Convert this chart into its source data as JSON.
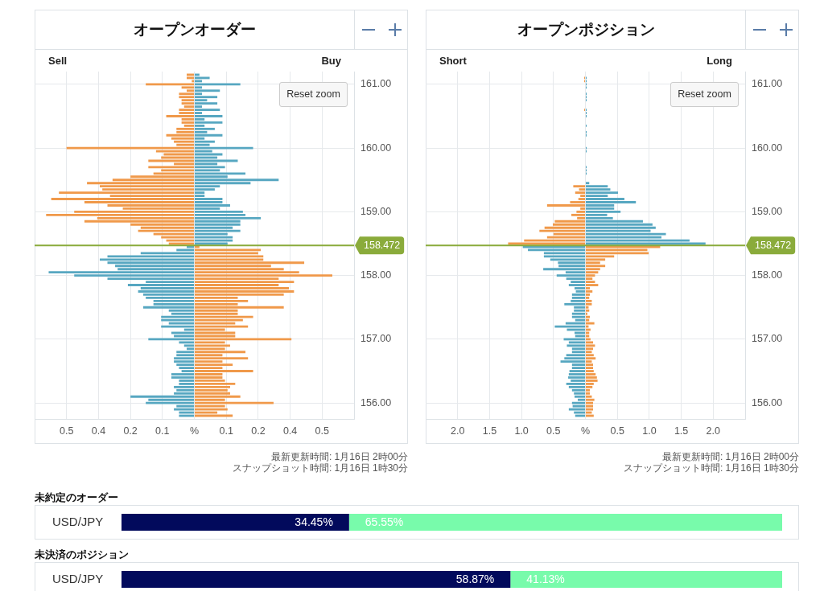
{
  "chart_data": [
    {
      "type": "bar",
      "orientation": "horizontal",
      "stacked": true,
      "title": "オープンオーダー",
      "x": [
        161.15,
        161.1,
        161.05,
        161,
        160.95,
        160.9,
        160.85,
        160.8,
        160.75,
        160.7,
        160.65,
        160.6,
        160.55,
        160.5,
        160.45,
        160.4,
        160.35,
        160.3,
        160.25,
        160.2,
        160.15,
        160.1,
        160.05,
        160,
        159.95,
        159.9,
        159.85,
        159.8,
        159.75,
        159.7,
        159.65,
        159.6,
        159.55,
        159.5,
        159.45,
        159.4,
        159.35,
        159.3,
        159.25,
        159.2,
        159.15,
        159.1,
        159.05,
        159,
        158.95,
        158.9,
        158.85,
        158.8,
        158.75,
        158.7,
        158.65,
        158.6,
        158.55,
        158.5,
        158.45,
        158.4,
        158.35,
        158.3,
        158.25,
        158.2,
        158.15,
        158.1,
        158.05,
        158,
        157.95,
        157.9,
        157.85,
        157.8,
        157.75,
        157.7,
        157.65,
        157.6,
        157.55,
        157.5,
        157.45,
        157.4,
        157.35,
        157.3,
        157.25,
        157.2,
        157.15,
        157.1,
        157.05,
        157,
        156.95,
        156.9,
        156.85,
        156.8,
        156.75,
        156.7,
        156.65,
        156.6,
        156.55,
        156.5,
        156.45,
        156.4,
        156.35,
        156.3,
        156.25,
        156.2,
        156.15,
        156.1,
        156.05,
        156,
        155.95,
        155.9,
        155.85,
        155.8
      ],
      "series": [
        {
          "values": [
            -0.03,
            -0.03,
            -0.01,
            -0.19,
            -0.05,
            -0.03,
            -0.06,
            -0.06,
            -0.05,
            -0.05,
            -0.04,
            -0.06,
            -0.06,
            -0.11,
            -0.05,
            -0.05,
            -0.04,
            -0.07,
            -0.07,
            -0.11,
            -0.09,
            -0.08,
            -0.07,
            -0.5,
            -0.15,
            -0.12,
            -0.13,
            -0.18,
            -0.08,
            -0.18,
            -0.13,
            -0.16,
            -0.25,
            -0.32,
            -0.42,
            -0.37,
            -0.36,
            -0.53,
            -0.33,
            -0.56,
            -0.43,
            -0.34,
            -0.28,
            -0.47,
            -0.58,
            -0.38,
            -0.43,
            -0.25,
            -0.21,
            -0.22,
            -0.16,
            -0.13,
            -0.11,
            -0.1,
            -0.03,
            -0.07,
            -0.21,
            -0.34,
            -0.37,
            -0.34,
            -0.31,
            -0.3,
            -0.57,
            -0.47,
            -0.34,
            -0.19,
            -0.26,
            -0.21,
            -0.22,
            -0.2,
            -0.19,
            -0.16,
            -0.16,
            -0.2,
            -0.1,
            -0.09,
            -0.13,
            -0.13,
            -0.1,
            -0.13,
            -0.04,
            -0.09,
            -0.08,
            -0.18,
            -0.06,
            -0.04,
            -0.03,
            -0.07,
            -0.07,
            -0.08,
            -0.08,
            -0.07,
            -0.06,
            -0.05,
            -0.09,
            -0.09,
            -0.06,
            -0.06,
            -0.08,
            -0.07,
            -0.08,
            -0.25,
            -0.18,
            -0.19,
            -0.07,
            -0.08,
            -0.06,
            -0.06
          ],
          "colors": [
            "#f0994a",
            "#f0994a",
            "#f0994a",
            "#f0994a",
            "#f0994a",
            "#f0994a",
            "#f0994a",
            "#f0994a",
            "#f0994a",
            "#f0994a",
            "#f0994a",
            "#f0994a",
            "#f0994a",
            "#f0994a",
            "#f0994a",
            "#f0994a",
            "#f0994a",
            "#f0994a",
            "#f0994a",
            "#f0994a",
            "#f0994a",
            "#f0994a",
            "#f0994a",
            "#f0994a",
            "#f0994a",
            "#f0994a",
            "#f0994a",
            "#f0994a",
            "#f0994a",
            "#f0994a",
            "#f0994a",
            "#f0994a",
            "#f0994a",
            "#f0994a",
            "#f0994a",
            "#f0994a",
            "#f0994a",
            "#f0994a",
            "#f0994a",
            "#f0994a",
            "#f0994a",
            "#f0994a",
            "#f0994a",
            "#f0994a",
            "#f0994a",
            "#f0994a",
            "#f0994a",
            "#f0994a",
            "#f0994a",
            "#f0994a",
            "#f0994a",
            "#f0994a",
            "#f0994a",
            "#f0994a",
            "#57a7c1",
            "#57a7c1",
            "#57a7c1",
            "#57a7c1",
            "#57a7c1",
            "#57a7c1",
            "#57a7c1",
            "#57a7c1",
            "#57a7c1",
            "#57a7c1",
            "#57a7c1",
            "#57a7c1",
            "#57a7c1",
            "#57a7c1",
            "#57a7c1",
            "#57a7c1",
            "#57a7c1",
            "#57a7c1",
            "#57a7c1",
            "#57a7c1",
            "#57a7c1",
            "#57a7c1",
            "#57a7c1",
            "#57a7c1",
            "#57a7c1",
            "#57a7c1",
            "#57a7c1",
            "#57a7c1",
            "#57a7c1",
            "#57a7c1",
            "#57a7c1",
            "#57a7c1",
            "#57a7c1",
            "#57a7c1",
            "#57a7c1",
            "#57a7c1",
            "#57a7c1",
            "#57a7c1",
            "#57a7c1",
            "#57a7c1",
            "#57a7c1",
            "#57a7c1",
            "#57a7c1",
            "#57a7c1",
            "#57a7c1",
            "#57a7c1",
            "#57a7c1",
            "#57a7c1",
            "#57a7c1",
            "#57a7c1",
            "#57a7c1",
            "#57a7c1",
            "#57a7c1",
            "#57a7c1"
          ]
        },
        {
          "values": [
            0.02,
            0.06,
            0.03,
            0.18,
            0.03,
            0.1,
            0.03,
            0.09,
            0.05,
            0.09,
            0.03,
            0.1,
            0.03,
            0.11,
            0.04,
            0.11,
            0.04,
            0.08,
            0.05,
            0.11,
            0.04,
            0.08,
            0.06,
            0.23,
            0.07,
            0.11,
            0.09,
            0.17,
            0.09,
            0.12,
            0.1,
            0.2,
            0.13,
            0.33,
            0.22,
            0.1,
            0.08,
            0.04,
            0.04,
            0.11,
            0.11,
            0.14,
            0.1,
            0.19,
            0.2,
            0.26,
            0.18,
            0.18,
            0.15,
            0.18,
            0.13,
            0.15,
            0.15,
            0.13,
            0.02,
            0.26,
            0.25,
            0.27,
            0.27,
            0.43,
            0.3,
            0.35,
            0.41,
            0.54,
            0.33,
            0.39,
            0.33,
            0.37,
            0.39,
            0.35,
            0.17,
            0.21,
            0.17,
            0.35,
            0.17,
            0.17,
            0.23,
            0.19,
            0.16,
            0.21,
            0.12,
            0.16,
            0.16,
            0.38,
            0.12,
            0.14,
            0.12,
            0.2,
            0.11,
            0.21,
            0.11,
            0.15,
            0.11,
            0.23,
            0.11,
            0.11,
            0.12,
            0.16,
            0.14,
            0.13,
            0.14,
            0.18,
            0.12,
            0.31,
            0.12,
            0.13,
            0.09,
            0.15
          ],
          "colors": [
            "#57a7c1",
            "#57a7c1",
            "#57a7c1",
            "#57a7c1",
            "#57a7c1",
            "#57a7c1",
            "#57a7c1",
            "#57a7c1",
            "#57a7c1",
            "#57a7c1",
            "#57a7c1",
            "#57a7c1",
            "#57a7c1",
            "#57a7c1",
            "#57a7c1",
            "#57a7c1",
            "#57a7c1",
            "#57a7c1",
            "#57a7c1",
            "#57a7c1",
            "#57a7c1",
            "#57a7c1",
            "#57a7c1",
            "#57a7c1",
            "#57a7c1",
            "#57a7c1",
            "#57a7c1",
            "#57a7c1",
            "#57a7c1",
            "#57a7c1",
            "#57a7c1",
            "#57a7c1",
            "#57a7c1",
            "#57a7c1",
            "#57a7c1",
            "#57a7c1",
            "#57a7c1",
            "#57a7c1",
            "#57a7c1",
            "#57a7c1",
            "#57a7c1",
            "#57a7c1",
            "#57a7c1",
            "#57a7c1",
            "#57a7c1",
            "#57a7c1",
            "#57a7c1",
            "#57a7c1",
            "#57a7c1",
            "#57a7c1",
            "#57a7c1",
            "#57a7c1",
            "#57a7c1",
            "#57a7c1",
            "#f0994a",
            "#f0994a",
            "#f0994a",
            "#f0994a",
            "#f0994a",
            "#f0994a",
            "#f0994a",
            "#f0994a",
            "#f0994a",
            "#f0994a",
            "#f0994a",
            "#f0994a",
            "#f0994a",
            "#f0994a",
            "#f0994a",
            "#f0994a",
            "#f0994a",
            "#f0994a",
            "#f0994a",
            "#f0994a",
            "#f0994a",
            "#f0994a",
            "#f0994a",
            "#f0994a",
            "#f0994a",
            "#f0994a",
            "#f0994a",
            "#f0994a",
            "#f0994a",
            "#f0994a",
            "#f0994a",
            "#f0994a",
            "#f0994a",
            "#f0994a",
            "#f0994a",
            "#f0994a",
            "#f0994a",
            "#f0994a",
            "#f0994a",
            "#f0994a",
            "#f0994a",
            "#f0994a",
            "#f0994a",
            "#f0994a",
            "#f0994a",
            "#f0994a",
            "#f0994a",
            "#f0994a",
            "#f0994a",
            "#f0994a",
            "#f0994a",
            "#f0994a",
            "#f0994a",
            "#f0994a"
          ]
        }
      ],
      "xlim": [
        -0.625,
        0.625
      ],
      "xticks": [
        {
          "value": -0.5,
          "label": "0.5"
        },
        {
          "value": -0.375,
          "label": "0.4"
        },
        {
          "value": -0.25,
          "label": "0.2"
        },
        {
          "value": -0.125,
          "label": "0.1"
        },
        {
          "value": 0,
          "label": "%"
        },
        {
          "value": 0.125,
          "label": "0.1"
        },
        {
          "value": 0.25,
          "label": "0.2"
        },
        {
          "value": 0.375,
          "label": "0.4"
        },
        {
          "value": 0.5,
          "label": "0.5"
        }
      ],
      "ylim": [
        155.75,
        161.2
      ],
      "yticks": [
        {
          "value": 156,
          "label": "156.00"
        },
        {
          "value": 157,
          "label": "157.00"
        },
        {
          "value": 158,
          "label": "158.00"
        },
        {
          "value": 159,
          "label": "159.00"
        },
        {
          "value": 160,
          "label": "160.00"
        },
        {
          "value": 161,
          "label": "161.00"
        }
      ],
      "grid": true,
      "ref_lines": [
        {
          "axis": "y",
          "value": 158.472,
          "label": "158.472",
          "color": "#8aab3b"
        }
      ],
      "annotations": [
        "Sell",
        "Buy",
        "Reset zoom",
        "最新更新時間: 1月16日 2時00分",
        "スナップショット時間: 1月16日 1時30分"
      ]
    },
    {
      "type": "bar",
      "orientation": "horizontal",
      "stacked": true,
      "title": "オープンポジション",
      "x": [
        161.1,
        161.05,
        161,
        160.95,
        160.9,
        160.85,
        160.8,
        160.75,
        160.7,
        160.65,
        160.6,
        160.55,
        160.5,
        160.45,
        160.4,
        160.35,
        160.3,
        160.25,
        160.2,
        160.15,
        160.1,
        160.05,
        160,
        159.95,
        159.9,
        159.85,
        159.8,
        159.75,
        159.7,
        159.65,
        159.6,
        159.55,
        159.5,
        159.45,
        159.4,
        159.35,
        159.3,
        159.25,
        159.2,
        159.15,
        159.1,
        159.05,
        159,
        158.95,
        158.9,
        158.85,
        158.8,
        158.75,
        158.7,
        158.65,
        158.6,
        158.55,
        158.5,
        158.45,
        158.4,
        158.35,
        158.3,
        158.25,
        158.2,
        158.15,
        158.1,
        158.05,
        158,
        157.95,
        157.9,
        157.85,
        157.8,
        157.75,
        157.7,
        157.65,
        157.6,
        157.55,
        157.5,
        157.45,
        157.4,
        157.35,
        157.3,
        157.25,
        157.2,
        157.15,
        157.1,
        157.05,
        157,
        156.95,
        156.9,
        156.85,
        156.8,
        156.75,
        156.7,
        156.65,
        156.6,
        156.55,
        156.5,
        156.45,
        156.4,
        156.35,
        156.3,
        156.25,
        156.2,
        156.15,
        156.1,
        156.05,
        156,
        155.95,
        155.9,
        155.85,
        155.8
      ],
      "series": [
        {
          "values": [
            -0.02,
            -0.02,
            null,
            null,
            null,
            null,
            null,
            null,
            null,
            null,
            -0.02,
            null,
            null,
            null,
            null,
            null,
            null,
            null,
            null,
            null,
            null,
            null,
            null,
            null,
            null,
            null,
            null,
            null,
            null,
            null,
            null,
            null,
            null,
            null,
            -0.19,
            -0.1,
            -0.16,
            -0.08,
            -0.11,
            -0.24,
            -0.6,
            -0.08,
            -0.14,
            -0.22,
            -0.13,
            -0.48,
            -0.51,
            -0.64,
            -0.72,
            -0.5,
            -0.6,
            -0.96,
            -1.21,
            -0.98,
            -0.9,
            -0.65,
            -0.65,
            -0.55,
            -0.43,
            -0.42,
            -0.66,
            -0.31,
            -0.45,
            -0.3,
            -0.23,
            -0.26,
            -0.17,
            -0.15,
            -0.21,
            -0.21,
            -0.23,
            -0.33,
            -0.18,
            -0.18,
            -0.21,
            -0.21,
            -0.16,
            -0.31,
            -0.48,
            -0.29,
            -0.17,
            -0.16,
            -0.34,
            -0.26,
            -0.29,
            -0.21,
            -0.21,
            -0.3,
            -0.33,
            -0.39,
            -0.21,
            -0.21,
            -0.25,
            -0.26,
            -0.27,
            -0.23,
            -0.3,
            -0.26,
            -0.21,
            -0.18,
            -0.17,
            -0.12,
            -0.21,
            -0.2,
            -0.26,
            -0.18,
            -0.16
          ],
          "colors": [
            "#f0994a",
            "#f0994a",
            "#f0994a",
            "#f0994a",
            "#f0994a",
            "#f0994a",
            "#f0994a",
            "#f0994a",
            "#f0994a",
            "#f0994a",
            "#f0994a",
            "#f0994a",
            "#f0994a",
            "#f0994a",
            "#f0994a",
            "#f0994a",
            "#f0994a",
            "#f0994a",
            "#f0994a",
            "#f0994a",
            "#f0994a",
            "#f0994a",
            "#f0994a",
            "#f0994a",
            "#f0994a",
            "#f0994a",
            "#f0994a",
            "#f0994a",
            "#f0994a",
            "#f0994a",
            "#f0994a",
            "#f0994a",
            "#f0994a",
            "#f0994a",
            "#f0994a",
            "#f0994a",
            "#f0994a",
            "#f0994a",
            "#f0994a",
            "#f0994a",
            "#f0994a",
            "#f0994a",
            "#f0994a",
            "#f0994a",
            "#f0994a",
            "#f0994a",
            "#f0994a",
            "#f0994a",
            "#f0994a",
            "#f0994a",
            "#f0994a",
            "#f0994a",
            "#f0994a",
            "#57a7c1",
            "#57a7c1",
            "#57a7c1",
            "#57a7c1",
            "#57a7c1",
            "#57a7c1",
            "#57a7c1",
            "#57a7c1",
            "#57a7c1",
            "#57a7c1",
            "#57a7c1",
            "#57a7c1",
            "#57a7c1",
            "#57a7c1",
            "#57a7c1",
            "#57a7c1",
            "#57a7c1",
            "#57a7c1",
            "#57a7c1",
            "#57a7c1",
            "#57a7c1",
            "#57a7c1",
            "#57a7c1",
            "#57a7c1",
            "#57a7c1",
            "#57a7c1",
            "#57a7c1",
            "#57a7c1",
            "#57a7c1",
            "#57a7c1",
            "#57a7c1",
            "#57a7c1",
            "#57a7c1",
            "#57a7c1",
            "#57a7c1",
            "#57a7c1",
            "#57a7c1",
            "#57a7c1",
            "#57a7c1",
            "#57a7c1",
            "#57a7c1",
            "#57a7c1",
            "#57a7c1",
            "#57a7c1",
            "#57a7c1",
            "#57a7c1",
            "#57a7c1",
            "#57a7c1",
            "#57a7c1",
            "#57a7c1",
            "#57a7c1",
            "#57a7c1",
            "#57a7c1",
            "#57a7c1"
          ]
        },
        {
          "values": [
            0.02,
            0.02,
            0.02,
            0.02,
            null,
            0.02,
            0.02,
            0.02,
            null,
            null,
            0.02,
            0.02,
            0.02,
            null,
            null,
            0.02,
            null,
            0.02,
            0.02,
            null,
            null,
            null,
            0.02,
            0.02,
            null,
            null,
            null,
            null,
            0.02,
            0.02,
            0.02,
            null,
            null,
            0.06,
            0.35,
            0.39,
            0.51,
            0.35,
            0.61,
            0.79,
            0.45,
            0.45,
            0.55,
            0.34,
            0.43,
            0.9,
            1.05,
            1.1,
            1.02,
            1.26,
            1.19,
            1.63,
            1.88,
            1.17,
            0.97,
            0.99,
            0.45,
            0.31,
            0.23,
            0.31,
            0.23,
            0.2,
            0.15,
            0.11,
            0.15,
            0.2,
            0.07,
            0.11,
            0.07,
            0.06,
            0.1,
            0.1,
            0.05,
            0.06,
            0.03,
            0.07,
            0.06,
            0.14,
            0.05,
            0.08,
            0.06,
            0.06,
            0.08,
            0.12,
            0.15,
            0.12,
            0.1,
            0.13,
            0.16,
            0.1,
            0.12,
            0.12,
            0.13,
            0.16,
            0.18,
            0.19,
            0.13,
            0.11,
            0.07,
            0.07,
            0.1,
            0.14,
            0.12,
            0.12,
            0.12,
            0.1,
            0.13
          ],
          "colors": [
            "#57a7c1",
            "#57a7c1",
            "#57a7c1",
            "#57a7c1",
            "#57a7c1",
            "#57a7c1",
            "#57a7c1",
            "#57a7c1",
            "#57a7c1",
            "#57a7c1",
            "#57a7c1",
            "#57a7c1",
            "#57a7c1",
            "#57a7c1",
            "#57a7c1",
            "#57a7c1",
            "#57a7c1",
            "#57a7c1",
            "#57a7c1",
            "#57a7c1",
            "#57a7c1",
            "#57a7c1",
            "#57a7c1",
            "#57a7c1",
            "#57a7c1",
            "#57a7c1",
            "#57a7c1",
            "#57a7c1",
            "#57a7c1",
            "#57a7c1",
            "#57a7c1",
            "#57a7c1",
            "#57a7c1",
            "#57a7c1",
            "#57a7c1",
            "#57a7c1",
            "#57a7c1",
            "#57a7c1",
            "#57a7c1",
            "#57a7c1",
            "#57a7c1",
            "#57a7c1",
            "#57a7c1",
            "#57a7c1",
            "#57a7c1",
            "#57a7c1",
            "#57a7c1",
            "#57a7c1",
            "#57a7c1",
            "#57a7c1",
            "#57a7c1",
            "#57a7c1",
            "#57a7c1",
            "#f0994a",
            "#f0994a",
            "#f0994a",
            "#f0994a",
            "#f0994a",
            "#f0994a",
            "#f0994a",
            "#f0994a",
            "#f0994a",
            "#f0994a",
            "#f0994a",
            "#f0994a",
            "#f0994a",
            "#f0994a",
            "#f0994a",
            "#f0994a",
            "#f0994a",
            "#f0994a",
            "#f0994a",
            "#f0994a",
            "#f0994a",
            "#f0994a",
            "#f0994a",
            "#f0994a",
            "#f0994a",
            "#f0994a",
            "#f0994a",
            "#f0994a",
            "#f0994a",
            "#f0994a",
            "#f0994a",
            "#f0994a",
            "#f0994a",
            "#f0994a",
            "#f0994a",
            "#f0994a",
            "#f0994a",
            "#f0994a",
            "#f0994a",
            "#f0994a",
            "#f0994a",
            "#f0994a",
            "#f0994a",
            "#f0994a",
            "#f0994a",
            "#f0994a",
            "#f0994a",
            "#f0994a",
            "#f0994a",
            "#f0994a",
            "#f0994a",
            "#f0994a",
            "#f0994a",
            "#f0994a"
          ]
        }
      ],
      "xlim": [
        -2.5,
        2.5
      ],
      "xticks": [
        {
          "value": -2,
          "label": "2.0"
        },
        {
          "value": -1.5,
          "label": "1.5"
        },
        {
          "value": -1,
          "label": "1.0"
        },
        {
          "value": -0.5,
          "label": "0.5"
        },
        {
          "value": 0,
          "label": "%"
        },
        {
          "value": 0.5,
          "label": "0.5"
        },
        {
          "value": 1,
          "label": "1.0"
        },
        {
          "value": 1.5,
          "label": "1.5"
        },
        {
          "value": 2,
          "label": "2.0"
        }
      ],
      "ylim": [
        155.75,
        161.2
      ],
      "yticks": [
        {
          "value": 156,
          "label": "156.00"
        },
        {
          "value": 157,
          "label": "157.00"
        },
        {
          "value": 158,
          "label": "158.00"
        },
        {
          "value": 159,
          "label": "159.00"
        },
        {
          "value": 160,
          "label": "160.00"
        },
        {
          "value": 161,
          "label": "161.00"
        }
      ],
      "grid": true,
      "ref_lines": [
        {
          "axis": "y",
          "value": 158.472,
          "label": "158.472",
          "color": "#8aab3b"
        }
      ],
      "annotations": [
        "Short",
        "Long",
        "Reset zoom",
        "最新更新時間: 1月16日 2時00分",
        "スナップショット時間: 1月16日 1時30分"
      ]
    },
    {
      "type": "bar",
      "orientation": "horizontal",
      "stacked": true,
      "title": "未約定のオーダー",
      "categories": [
        "USD/JPY"
      ],
      "series": [
        {
          "color": "#020a5c",
          "values": [
            34.45
          ],
          "value_labels": [
            "34.45%"
          ]
        },
        {
          "color": "#78fbab",
          "values": [
            65.55
          ],
          "value_labels": [
            "65.55%"
          ]
        }
      ],
      "xlim": [
        0,
        100
      ],
      "tick_labels": "y"
    },
    {
      "type": "bar",
      "orientation": "horizontal",
      "stacked": true,
      "title": "未決済のポジション",
      "categories": [
        "USD/JPY"
      ],
      "series": [
        {
          "color": "#020a5c",
          "values": [
            58.87
          ],
          "value_labels": [
            "58.87%"
          ]
        },
        {
          "color": "#78fbab",
          "values": [
            41.13
          ],
          "value_labels": [
            "41.13%"
          ]
        }
      ],
      "xlim": [
        0,
        100
      ],
      "tick_labels": "y"
    }
  ]
}
